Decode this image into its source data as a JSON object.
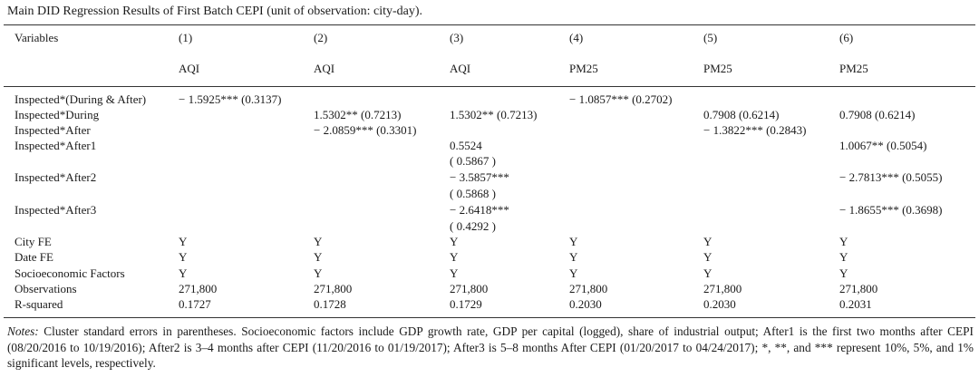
{
  "caption": "Main DID Regression Results of First Batch CEPI (unit of observation: city-day).",
  "header": {
    "variables_label": "Variables",
    "columns": [
      "(1)",
      "(2)",
      "(3)",
      "(4)",
      "(5)",
      "(6)"
    ],
    "dependent": [
      "AQI",
      "AQI",
      "AQI",
      "PM25",
      "PM25",
      "PM25"
    ]
  },
  "rows": [
    {
      "label": "Inspected*(During & After)",
      "cells": [
        "− 1.5925*** (0.3137)",
        "",
        "",
        "− 1.0857*** (0.2702)",
        "",
        ""
      ]
    },
    {
      "label": "Inspected*During",
      "cells": [
        "",
        "1.5302** (0.7213)",
        "1.5302** (0.7213)",
        "",
        "0.7908 (0.6214)",
        "0.7908 (0.6214)"
      ]
    },
    {
      "label": "Inspected*After",
      "cells": [
        "",
        "− 2.0859*** (0.3301)",
        "",
        "",
        "− 1.3822*** (0.2843)",
        ""
      ]
    },
    {
      "label": "Inspected*After1",
      "cells": [
        "",
        "",
        "0.5524",
        "",
        "",
        "1.0067** (0.5054)"
      ]
    },
    {
      "label": "",
      "cells": [
        "",
        "",
        "( 0.5867 )",
        "",
        "",
        ""
      ]
    },
    {
      "label": "Inspected*After2",
      "cells": [
        "",
        "",
        "− 3.5857***",
        "",
        "",
        "− 2.7813*** (0.5055)"
      ]
    },
    {
      "label": "",
      "cells": [
        "",
        "",
        "( 0.5868 )",
        "",
        "",
        ""
      ]
    },
    {
      "label": "Inspected*After3",
      "cells": [
        "",
        "",
        "− 2.6418***",
        "",
        "",
        "− 1.8655*** (0.3698)"
      ]
    },
    {
      "label": "",
      "cells": [
        "",
        "",
        "( 0.4292 )",
        "",
        "",
        ""
      ]
    },
    {
      "label": "City FE",
      "cells": [
        "Y",
        "Y",
        "Y",
        "Y",
        "Y",
        "Y"
      ]
    },
    {
      "label": "Date FE",
      "cells": [
        "Y",
        "Y",
        "Y",
        "Y",
        "Y",
        "Y"
      ]
    },
    {
      "label": "Socioeconomic Factors",
      "cells": [
        "Y",
        "Y",
        "Y",
        "Y",
        "Y",
        "Y"
      ]
    },
    {
      "label": "Observations",
      "cells": [
        "271,800",
        "271,800",
        "271,800",
        "271,800",
        "271,800",
        "271,800"
      ]
    },
    {
      "label": "R-squared",
      "cells": [
        "0.1727",
        "0.1728",
        "0.1729",
        "0.2030",
        "0.2030",
        "0.2031"
      ]
    }
  ],
  "notes": {
    "label": "Notes:",
    "text": " Cluster standard errors in parentheses. Socioeconomic factors include GDP growth rate, GDP per capital (logged), share of industrial output; After1 is the first two months after CEPI (08/20/2016 to 10/19/2016); After2 is 3–4 months after CEPI (11/20/2016 to 01/19/2017); After3 is 5–8 months After CEPI (01/20/2017 to 04/24/2017); *, **, and *** represent 10%, 5%, and 1% significant levels, respectively."
  }
}
